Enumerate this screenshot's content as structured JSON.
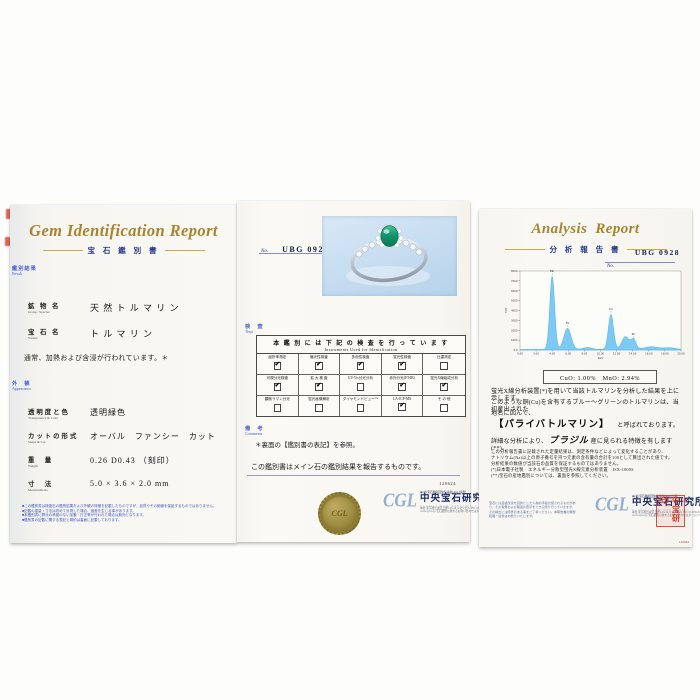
{
  "icons": {
    "check": "✔"
  },
  "colors": {
    "gold_title": "#a8842f",
    "navy": "#2a3a8c",
    "section_blue": "#4a5fd0",
    "chart_fill": "#74c7f3",
    "seal_gold": "#8d7b2f",
    "stamp_red": "#cf3b2a",
    "photo_bg": "#c9def1"
  },
  "left_panel": {
    "title": "Gem Identification Report",
    "subtitle_jp": "宝 石 鑑 別 書",
    "section_result_jp": "鑑別結果",
    "section_result_en": "Result",
    "fields": [
      {
        "jp": "鉱 物 名",
        "en": "Group / Species",
        "value": "天 然 ト ル マ リ ン"
      },
      {
        "jp": "宝 石 名",
        "en": "Variety",
        "value": "ト ル マ リ ン"
      }
    ],
    "treatment_note": "通常、加熱および含浸が行われています。＊",
    "section_appearance_jp": "外　観",
    "section_appearance_en": "Appearance",
    "appearance_fields": [
      {
        "jp": "透明度と色",
        "en": "Transparency & Color",
        "value": "透明緑色"
      },
      {
        "jp": "カットの形式",
        "en": "Shape & Cut",
        "value": "オーバル　ファンシー　カット"
      },
      {
        "jp": "重　量",
        "en": "Weight",
        "value": "0.26  D0.43 （刻印）"
      },
      {
        "jp": "寸　法",
        "en": "Measurements",
        "value": "5.0 × 3.6 × 2.0 mm"
      }
    ],
    "footnotes": [
      "■この鑑別書は検査石の鑑別結果および外観の特徴を記載したものですが、品質やその価値を保証するものではありません。",
      "■記載の重量・寸法は改めて計測した場合、誤差を生じる事があります。",
      "■本鑑別書に弊社の承諾のない加筆・訂正等が行われた場合は無効となります。",
      "■鑑別書の記載に関する表記と規約は裏面に記載しております。"
    ]
  },
  "middle_panel": {
    "no_label": "No.",
    "report_no": "UBG 0928",
    "section_tests_jp": "検　査",
    "section_tests_en": "Tests",
    "table_title_jp": "本 鑑 別 に は 下 記 の 検 査 を 行 っ て い ま す",
    "table_title_en": "Instruments Used for Identification",
    "cells": [
      {
        "label": "屈折率測定",
        "checked": true
      },
      {
        "label": "偏光性検査",
        "checked": true
      },
      {
        "label": "多色性検査",
        "checked": true
      },
      {
        "label": "蛍光性検査",
        "checked": true
      },
      {
        "label": "比重測定",
        "checked": false
      },
      {
        "label": "可視分光検査",
        "checked": true
      },
      {
        "label": "拡 大 検 査",
        "checked": true
      },
      {
        "label": "UV-Vis分光分析",
        "checked": false
      },
      {
        "label": "赤外分光(FT-IR)",
        "checked": true
      },
      {
        "label": "蛍光X線組成分析",
        "checked": true
      },
      {
        "label": "顕微ラマン分光",
        "checked": false
      },
      {
        "label": "蛍光画像解析",
        "checked": false
      },
      {
        "label": "ダイヤモンドビュー™",
        "checked": false
      },
      {
        "label": "LA-ICP-MS",
        "checked": true
      },
      {
        "label": "そ の 他",
        "checked": false
      }
    ],
    "section_comments_jp": "備　考",
    "section_comments_en": "Comments",
    "comment_ref": "＊裏面の【鑑別書の表記】を参照。",
    "comment_main": "この鑑別書はメイン石の鑑別結果を報告するものです。",
    "serial": "120624"
  },
  "right_panel": {
    "title": "Analysis  Report",
    "subtitle_jp": "分 析 報 告 書",
    "no_label": "No.",
    "report_no": "UBG 0928",
    "result_box": "CuO: 1.00%　MnO: 2.94%",
    "para1": "蛍光X線分析装置(*)を用いて当該トルマリンを分析した結果を上に示します。",
    "para2": "このような銅(Cu)を含有するブルー～グリーンのトルマリンは、当初産出された",
    "para3": "地名に因んで、",
    "highlight": "【パライバトルマリン】",
    "highlight_suffix": "と呼ばれております。",
    "origin_pre": "詳細な分析により、",
    "origin": "ブラジル",
    "origin_post": "産に見られる特徴を有します(**)。",
    "notes": [
      "この分析報告書に記載された定量結果は、測定条件などによって変化することがあり、",
      "ナトリウム(Na)以上の原子番号を持つ元素の含有量の合計を100として算出された値です。",
      "分析結果の数値が当該石の品質を保証するものではありません。",
      "(*)日本電子社製　エネルギー分散型蛍光X線元素分析装置　JSX-1000S",
      "(**)宝石の産地鑑別については、裏面を参照してください。"
    ],
    "disclaimers": [
      "宝石には品質改善を目的とした人為的手段が施されるものがあ",
      "り、その有無および程度の表示をできる限り行っていますが、",
      "その検出には限界のある事をご了承ください。本報告書の無断",
      "転載・加筆はお断りいたします。"
    ],
    "serial": "120624"
  },
  "cgl": {
    "logo": "CGL",
    "agl": "(社)宝石鑑別団体協議会(AGL)加盟",
    "org": "中央宝石研究所",
    "org_en": "Central Gem Laboratory",
    "addr": "本社 東京都台東区上野5-15-14 ミマツビル TEL 03-3834-6586(代)",
    "web": "www.cgl.co.jp 宝石鑑別に関するお問い合わせはホームページをご覧下さい。",
    "stamp": "中宝研印"
  },
  "chart_data": {
    "type": "area",
    "description": "EDXRF element spectrum of the tourmaline",
    "xlabel": "keV",
    "ylabel": "cps",
    "x_range": [
      0,
      20
    ],
    "y_range": [
      0,
      8000
    ],
    "x_ticks": [
      "0.00",
      "2.00",
      "4.00",
      "6.00",
      "8.00",
      "10.00",
      "12.00",
      "14.00",
      "16.00",
      "18.00",
      "20.00"
    ],
    "y_ticks": [
      "1000",
      "2000",
      "3000",
      "4000",
      "5000",
      "6000",
      "7000",
      "8000"
    ],
    "origin_label": "0.0",
    "baseline_counts": 60,
    "peaks": [
      {
        "element": "Mn",
        "kev": 4.0,
        "counts": 7400,
        "width_kev": 0.3
      },
      {
        "element": "Fe",
        "kev": 5.9,
        "counts": 2150,
        "width_kev": 0.45
      },
      {
        "element": "",
        "kev": 8.4,
        "counts": 200,
        "width_kev": 0.55
      },
      {
        "element": "Cu",
        "kev": 11.3,
        "counts": 3550,
        "width_kev": 0.32
      },
      {
        "element": "",
        "kev": 13.1,
        "counts": 1300,
        "width_kev": 0.45
      },
      {
        "element": "Zn",
        "kev": 14.1,
        "counts": 1000,
        "width_kev": 0.32
      },
      {
        "element": "",
        "kev": 16.3,
        "counts": 270,
        "width_kev": 0.9
      },
      {
        "element": "",
        "kev": 18.6,
        "counts": 170,
        "width_kev": 0.7
      }
    ],
    "annotation_box": "CuO: 1.00%　MnO: 2.94%"
  }
}
